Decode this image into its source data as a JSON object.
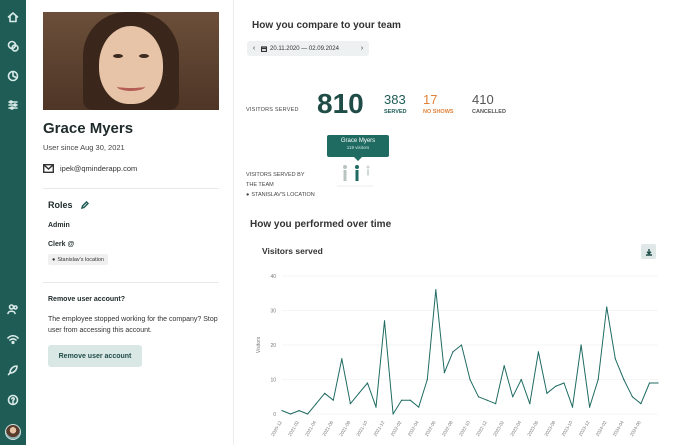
{
  "profile": {
    "name": "Grace Myers",
    "since": "User since Aug 30, 2021",
    "email": "ipek@qminderapp.com",
    "roles_title": "Roles",
    "roles": [
      "Admin",
      "Clerk @"
    ],
    "location_chip": "Stanislav's location",
    "remove_title": "Remove user account?",
    "remove_text": "The employee stopped working for the company? Stop user from accessing this account.",
    "remove_button": "Remove user account"
  },
  "compare": {
    "title": "How you compare to your team",
    "date_range": "20.11.2020 — 02.09.2024",
    "prev_arrow": "‹",
    "next_arrow": "›",
    "visitors_served_label": "VISITORS SERVED",
    "total": "810",
    "served_value": "383",
    "served_label": "SERVED",
    "noshows_value": "17",
    "noshows_label": "NO SHOWS",
    "cancelled_value": "410",
    "cancelled_label": "CANCELLED",
    "tooltip_name": "Grace Myers",
    "tooltip_value": "119 visitors",
    "team_label_1": "VISITORS SERVED BY",
    "team_label_2": "THE TEAM",
    "team_location": "STANISLAV'S LOCATION"
  },
  "performance": {
    "title": "How you performed over time",
    "card_title": "Visitors served"
  },
  "colors": {
    "rail": "#1f5c56",
    "accent": "#1f6b62",
    "noshow": "#e0823a",
    "line": "#1f6b62"
  },
  "chart_data": {
    "type": "line",
    "title": "Visitors served",
    "xlabel": "",
    "ylabel": "Visitors",
    "ylim": [
      0,
      40
    ],
    "yticks": [
      0,
      10,
      20,
      30,
      40
    ],
    "grid": true,
    "x": [
      "2020-12",
      "2021-01",
      "2021-02",
      "2021-03",
      "2021-04",
      "2021-05",
      "2021-06",
      "2021-07",
      "2021-08",
      "2021-09",
      "2021-10",
      "2021-11",
      "2021-12",
      "2022-01",
      "2022-02",
      "2022-03",
      "2022-04",
      "2022-05",
      "2022-06",
      "2022-07",
      "2022-08",
      "2022-09",
      "2022-10",
      "2022-11",
      "2022-12",
      "2023-01",
      "2023-02",
      "2023-03",
      "2023-04",
      "2023-05",
      "2023-06",
      "2023-07",
      "2023-08",
      "2023-09",
      "2023-10",
      "2023-11",
      "2023-12",
      "2024-01",
      "2024-02",
      "2024-03",
      "2024-04",
      "2024-05",
      "2024-06",
      "2024-07",
      "2024-08"
    ],
    "xtick_labels": [
      "2020-12",
      "2021-02",
      "2021-04",
      "2021-06",
      "2021-08",
      "2021-10",
      "2021-12",
      "2022-02",
      "2022-04",
      "2022-06",
      "2022-08",
      "2022-10",
      "2022-12",
      "2023-02",
      "2023-04",
      "2023-06",
      "2023-08",
      "2023-10",
      "2023-12",
      "2024-02",
      "2024-04",
      "2024-06"
    ],
    "series": [
      {
        "values": [
          1,
          0,
          1,
          0,
          3,
          6,
          4,
          16,
          3,
          6,
          9,
          2,
          27,
          0,
          4,
          4,
          2,
          10,
          36,
          12,
          18,
          20,
          10,
          5,
          4,
          3,
          14,
          5,
          10,
          3,
          18,
          6,
          8,
          9,
          2,
          20,
          2,
          10,
          31,
          16,
          10,
          5,
          3,
          9,
          9
        ]
      }
    ]
  }
}
